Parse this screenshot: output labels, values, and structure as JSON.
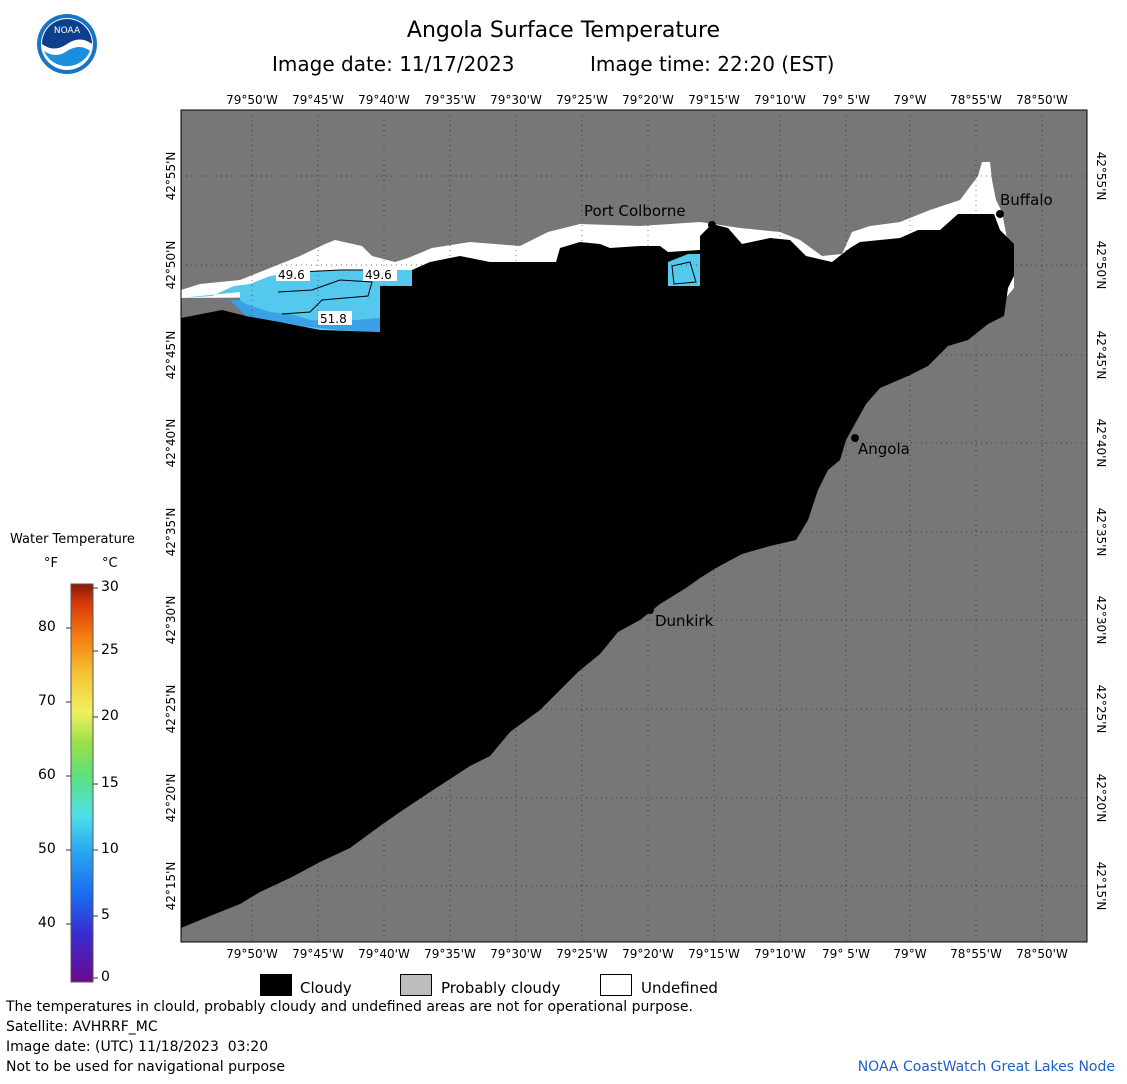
{
  "header": {
    "title": "Angola Surface Temperature",
    "image_date_label": "Image date: 11/17/2023",
    "image_time_label": "Image time: 22:20 (EST)",
    "logo_text": "NOAA"
  },
  "map": {
    "lon_labels": [
      "79°50'W",
      "79°45'W",
      "79°40'W",
      "79°35'W",
      "79°30'W",
      "79°25'W",
      "79°20'W",
      "79°15'W",
      "79°10'W",
      "79° 5'W",
      "79°W",
      "78°55'W",
      "78°50'W"
    ],
    "lat_labels": [
      "42°55'N",
      "42°50'N",
      "42°45'N",
      "42°40'N",
      "42°35'N",
      "42°30'N",
      "42°25'N",
      "42°20'N",
      "42°15'N"
    ],
    "places": [
      {
        "name": "Port Colborne"
      },
      {
        "name": "Buffalo"
      },
      {
        "name": "Angola"
      },
      {
        "name": "Dunkirk"
      }
    ],
    "contours": [
      "49.6",
      "49.6",
      "51.8"
    ],
    "colors": {
      "land": "#777777",
      "cloud": "#000000",
      "undefined": "#ffffff",
      "water_warm": "#55c8ee",
      "water_cool": "#3aa0e8"
    }
  },
  "colorbar": {
    "title": "Water Temperature",
    "unit_f": "°F",
    "unit_c": "°C",
    "fahrenheit_ticks": [
      "80",
      "70",
      "60",
      "50",
      "40"
    ],
    "celsius_ticks": [
      "30",
      "25",
      "20",
      "15",
      "10",
      "5",
      "0"
    ]
  },
  "legend": {
    "items": [
      {
        "label": "Cloudy",
        "color": "#000000"
      },
      {
        "label": "Probably cloudy",
        "color": "#bdbdbd"
      },
      {
        "label": "Undefined",
        "color": "#ffffff"
      }
    ]
  },
  "footer": {
    "disclaimer": "The temperatures in clould, probably cloudy and undefined areas are not for operational purpose.",
    "satellite": "Satellite: AVHRRF_MC",
    "utc_date": "Image date: (UTC) 11/18/2023  03:20",
    "navigation": "Not to be used for navigational purpose",
    "credit": "NOAA CoastWatch Great Lakes Node"
  }
}
